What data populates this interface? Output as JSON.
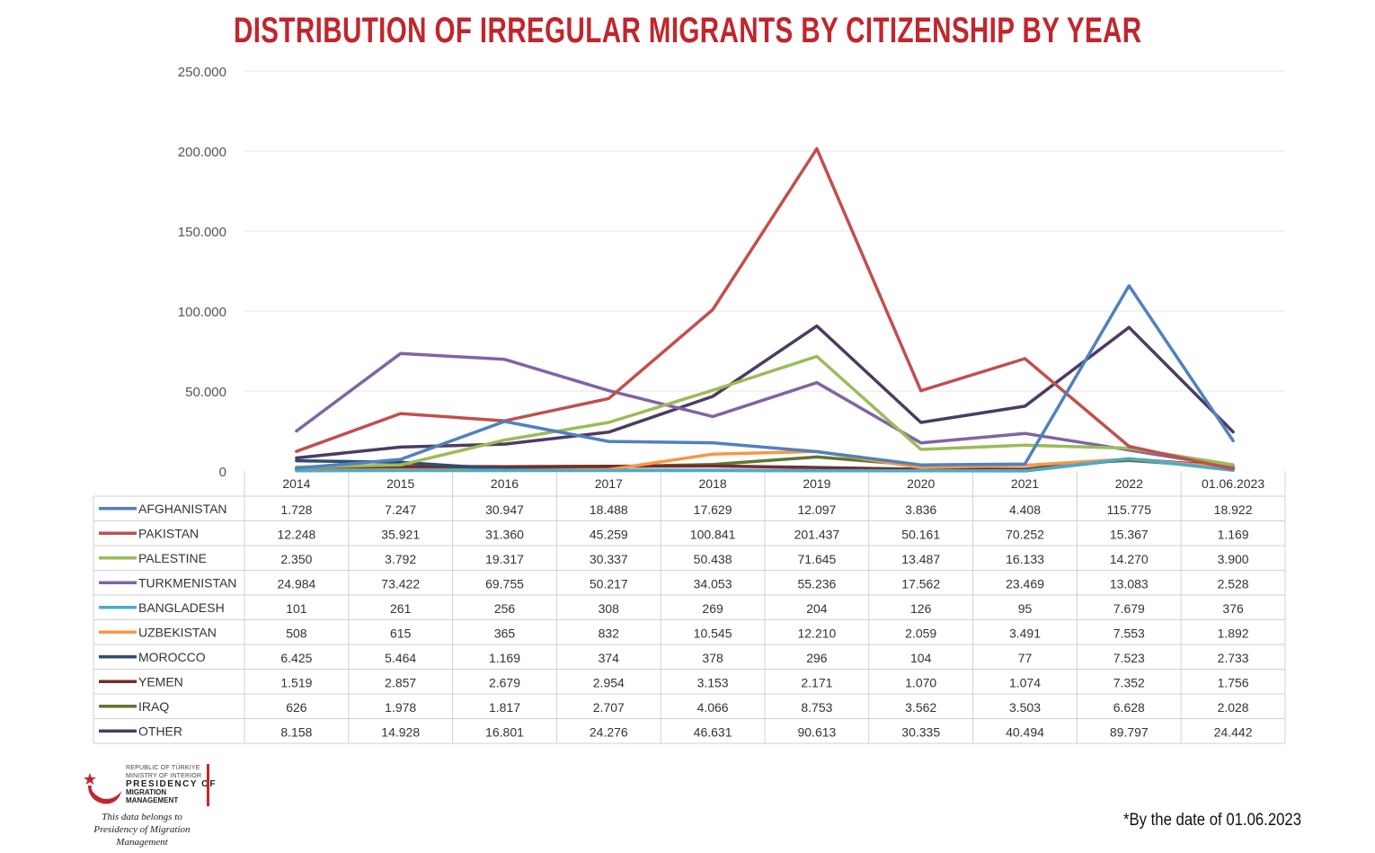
{
  "chart_data": {
    "type": "line",
    "title": "DISTRIBUTION OF IRREGULAR MIGRANTS BY CITIZENSHIP BY YEAR",
    "categories": [
      "2014",
      "2015",
      "2016",
      "2017",
      "2018",
      "2019",
      "2020",
      "2021",
      "2022",
      "01.06.2023"
    ],
    "ylim": [
      0,
      250000
    ],
    "yticks": [
      0,
      50000,
      100000,
      150000,
      200000,
      250000
    ],
    "ytick_labels": [
      "0",
      "50.000",
      "100.000",
      "150.000",
      "200.000",
      "250.000"
    ],
    "grid": true,
    "legend": "data-table-below",
    "series": [
      {
        "name": "AFGHANISTAN",
        "color": "#4f81bd",
        "values": [
          1728,
          7247,
          30947,
          18488,
          17629,
          12097,
          3836,
          4408,
          115775,
          18922
        ],
        "labels": [
          "1.728",
          "7.247",
          "30.947",
          "18.488",
          "17.629",
          "12.097",
          "3.836",
          "4.408",
          "115.775",
          "18.922"
        ]
      },
      {
        "name": "PAKISTAN",
        "color": "#c0504d",
        "values": [
          12248,
          35921,
          31360,
          45259,
          100841,
          201437,
          50161,
          70252,
          15367,
          1169
        ],
        "labels": [
          "12.248",
          "35.921",
          "31.360",
          "45.259",
          "100.841",
          "201.437",
          "50.161",
          "70.252",
          "15.367",
          "1.169"
        ]
      },
      {
        "name": "PALESTINE",
        "color": "#9bbb59",
        "values": [
          2350,
          3792,
          19317,
          30337,
          50438,
          71645,
          13487,
          16133,
          14270,
          3900
        ],
        "labels": [
          "2.350",
          "3.792",
          "19.317",
          "30.337",
          "50.438",
          "71.645",
          "13.487",
          "16.133",
          "14.270",
          "3.900"
        ]
      },
      {
        "name": "TURKMENISTAN",
        "color": "#8064a2",
        "values": [
          24984,
          73422,
          69755,
          50217,
          34053,
          55236,
          17562,
          23469,
          13083,
          2528
        ],
        "labels": [
          "24.984",
          "73.422",
          "69.755",
          "50.217",
          "34.053",
          "55.236",
          "17.562",
          "23.469",
          "13.083",
          "2.528"
        ]
      },
      {
        "name": "BANGLADESH",
        "color": "#4bacc6",
        "values": [
          101,
          261,
          256,
          308,
          269,
          204,
          126,
          95,
          7679,
          376
        ],
        "labels": [
          "101",
          "261",
          "256",
          "308",
          "269",
          "204",
          "126",
          "95",
          "7.679",
          "376"
        ]
      },
      {
        "name": "UZBEKISTAN",
        "color": "#f79646",
        "values": [
          508,
          615,
          365,
          832,
          10545,
          12210,
          2059,
          3491,
          7553,
          1892
        ],
        "labels": [
          "508",
          "615",
          "365",
          "832",
          "10.545",
          "12.210",
          "2.059",
          "3.491",
          "7.553",
          "1.892"
        ]
      },
      {
        "name": "MOROCCO",
        "color": "#2c4d75",
        "values": [
          6425,
          5464,
          1169,
          374,
          378,
          296,
          104,
          77,
          7523,
          2733
        ],
        "labels": [
          "6.425",
          "5.464",
          "1.169",
          "374",
          "378",
          "296",
          "104",
          "77",
          "7.523",
          "2.733"
        ]
      },
      {
        "name": "YEMEN",
        "color": "#772c2a",
        "values": [
          1519,
          2857,
          2679,
          2954,
          3153,
          2171,
          1070,
          1074,
          7352,
          1756
        ],
        "labels": [
          "1.519",
          "2.857",
          "2.679",
          "2.954",
          "3.153",
          "2.171",
          "1.070",
          "1.074",
          "7.352",
          "1.756"
        ]
      },
      {
        "name": "IRAQ",
        "color": "#5f7530",
        "values": [
          626,
          1978,
          1817,
          2707,
          4066,
          8753,
          3562,
          3503,
          6628,
          2028
        ],
        "labels": [
          "626",
          "1.978",
          "1.817",
          "2.707",
          "4.066",
          "8.753",
          "3.562",
          "3.503",
          "6.628",
          "2.028"
        ]
      },
      {
        "name": "OTHER",
        "color": "#4d3b62",
        "values": [
          8158,
          14928,
          16801,
          24276,
          46631,
          90613,
          30335,
          40494,
          89797,
          24442
        ],
        "labels": [
          "8.158",
          "14.928",
          "16.801",
          "24.276",
          "46.631",
          "90.613",
          "30.335",
          "40.494",
          "89.797",
          "24.442"
        ]
      }
    ]
  },
  "logo": {
    "line0": "REPUBLIC OF TÜRKIYE",
    "line1": "MINISTRY OF INTERIOR",
    "line2": "PRESIDENCY OF",
    "line3": "MIGRATION MANAGEMENT",
    "caption_line1": "This data belongs to",
    "caption_line2": "Presidency of Migration Management"
  },
  "footnote": "*By the date of 01.06.2023"
}
